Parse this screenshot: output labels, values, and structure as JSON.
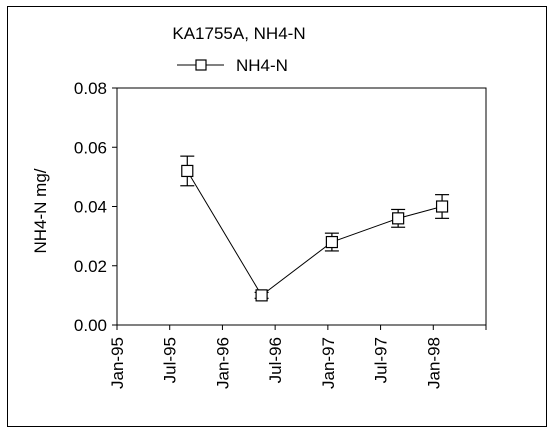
{
  "chart_data": {
    "type": "line",
    "title": "KA1755A, NH4-N",
    "xlabel": "",
    "ylabel": "NH4-N mg/",
    "x_tick_labels": [
      "Jan-95",
      "Jul-95",
      "Jan-96",
      "Jul-96",
      "Jan-97",
      "Jul-97",
      "Jan-98"
    ],
    "y_tick_labels": [
      "0.00",
      "0.02",
      "0.04",
      "0.06",
      "0.08"
    ],
    "ylim": [
      0,
      0.08
    ],
    "xlim": [
      "1995-01-01",
      "1998-07-01"
    ],
    "grid": false,
    "legend_position": "top-center",
    "series": [
      {
        "name": "NH4-N",
        "marker": "open-square",
        "color": "#000000",
        "points": [
          {
            "x": "1995-09-01",
            "y": 0.052,
            "err": 0.005
          },
          {
            "x": "1996-05-15",
            "y": 0.01,
            "err": 0.001
          },
          {
            "x": "1997-01-15",
            "y": 0.028,
            "err": 0.003
          },
          {
            "x": "1997-09-01",
            "y": 0.036,
            "err": 0.003
          },
          {
            "x": "1998-02-01",
            "y": 0.04,
            "err": 0.004
          }
        ]
      }
    ]
  }
}
